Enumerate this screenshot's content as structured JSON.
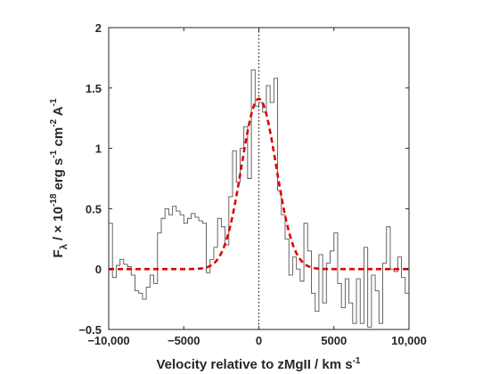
{
  "chart_data": {
    "type": "line",
    "title": "",
    "xlabel": "Velocity relative to zMgII / km s",
    "xlabel_sup": "-1",
    "ylabel_parts": {
      "f": "F",
      "sub": "λ",
      "mid": " / × 10",
      "e1": "-18",
      "erg": " erg s",
      "e2": "-1",
      "cm": " cm",
      "e3": "-2",
      "a": " A",
      "e4": "-1"
    },
    "xlim": [
      -10000,
      10000
    ],
    "ylim": [
      -0.5,
      2
    ],
    "grid": false,
    "legend": "none",
    "x_ticks": [
      -10000,
      -5000,
      0,
      5000,
      10000
    ],
    "x_tick_labels": [
      "−10,000",
      "−5000",
      "0",
      "5000",
      "10,000"
    ],
    "y_ticks": [
      -0.5,
      0,
      0.5,
      1,
      1.5,
      2
    ],
    "y_tick_labels": [
      "−0.5",
      "0",
      "0.5",
      "1",
      "1.5",
      "2"
    ],
    "vline_x": 0,
    "series": [
      {
        "kind": "step",
        "color": "#555555",
        "x": [
          -10000,
          -9750,
          -9500,
          -9250,
          -9000,
          -8750,
          -8500,
          -8250,
          -8000,
          -7750,
          -7500,
          -7250,
          -7000,
          -6750,
          -6500,
          -6250,
          -6000,
          -5750,
          -5500,
          -5250,
          -5000,
          -4750,
          -4500,
          -4250,
          -4000,
          -3750,
          -3500,
          -3250,
          -3000,
          -2750,
          -2500,
          -2250,
          -2000,
          -1750,
          -1500,
          -1250,
          -1000,
          -750,
          -500,
          -250,
          0,
          250,
          500,
          750,
          1000,
          1250,
          1500,
          1750,
          2000,
          2250,
          2500,
          2750,
          3000,
          3250,
          3500,
          3750,
          4000,
          4250,
          4500,
          4750,
          5000,
          5250,
          5500,
          5750,
          6000,
          6250,
          6500,
          6750,
          7000,
          7250,
          7500,
          7750,
          8000,
          8250,
          8500,
          8750,
          9000,
          9250,
          9500,
          9750
        ],
        "y": [
          0.38,
          -0.07,
          0.03,
          0.08,
          0.04,
          0.02,
          -0.05,
          -0.18,
          -0.2,
          -0.25,
          -0.15,
          -0.05,
          -0.12,
          0.3,
          0.42,
          0.5,
          0.45,
          0.52,
          0.48,
          0.45,
          0.38,
          0.42,
          0.46,
          0.43,
          0.4,
          0.38,
          -0.03,
          0.08,
          0.18,
          0.42,
          0.35,
          0.2,
          0.6,
          0.98,
          0.72,
          1.0,
          1.18,
          0.75,
          1.65,
          1.35,
          1.38,
          1.3,
          1.52,
          1.38,
          1.58,
          0.65,
          0.45,
          0.25,
          -0.05,
          0.1,
          0.0,
          -0.1,
          0.38,
          0.15,
          -0.2,
          -0.35,
          0.12,
          -0.28,
          0.05,
          0.15,
          0.3,
          -0.12,
          -0.32,
          -0.08,
          -0.28,
          -0.45,
          -0.08,
          -0.45,
          0.18,
          -0.48,
          -0.05,
          -0.18,
          -0.45,
          0.05,
          0.35,
          0.0,
          -0.02,
          0.1,
          -0.07,
          -0.2
        ]
      },
      {
        "kind": "gaussian",
        "color": "#e00000",
        "amplitude": 1.41,
        "center": 0,
        "sigma": 1150,
        "offset": 0
      }
    ]
  }
}
